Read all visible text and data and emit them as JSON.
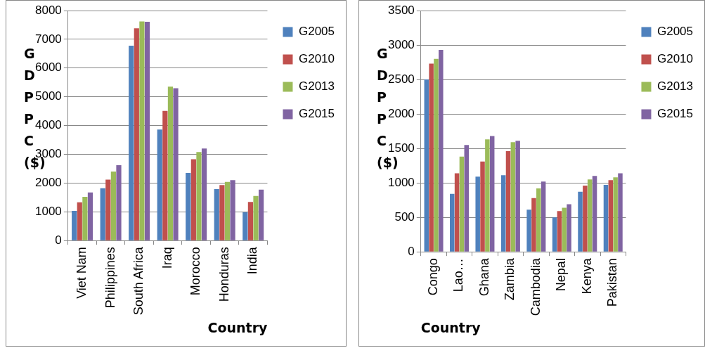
{
  "chart_data": [
    {
      "type": "bar",
      "xlabel": "Country",
      "ylabel": "GDPPC ($)",
      "categories": [
        "Viet Nam",
        "Philippines",
        "South Africa",
        "Iraq",
        "Morocco",
        "Honduras",
        "India"
      ],
      "series": [
        {
          "name": "G2005",
          "color": "#4f81bd",
          "values": [
            1030,
            1820,
            6780,
            3860,
            2350,
            1790,
            980
          ]
        },
        {
          "name": "G2010",
          "color": "#c0504d",
          "values": [
            1330,
            2120,
            7380,
            4510,
            2830,
            1930,
            1340
          ]
        },
        {
          "name": "G2013",
          "color": "#9bbb59",
          "values": [
            1520,
            2400,
            7620,
            5350,
            3080,
            2040,
            1550
          ]
        },
        {
          "name": "G2015",
          "color": "#8064a2",
          "values": [
            1670,
            2620,
            7610,
            5300,
            3200,
            2100,
            1770
          ]
        }
      ],
      "ylim": [
        0,
        8000
      ],
      "yticks": [
        0,
        1000,
        2000,
        3000,
        4000,
        5000,
        6000,
        7000,
        8000
      ],
      "grid": "y",
      "legend": "top right"
    },
    {
      "type": "bar",
      "xlabel": "Country",
      "ylabel": "GDPPC ($)",
      "categories": [
        "Congo",
        "Lao…",
        "Ghana",
        "Zambia",
        "Cambodia",
        "Nepal",
        "Kenya",
        "Pakistan"
      ],
      "series": [
        {
          "name": "G2005",
          "color": "#4f81bd",
          "values": [
            2500,
            840,
            1090,
            1110,
            610,
            500,
            870,
            970
          ]
        },
        {
          "name": "G2010",
          "color": "#c0504d",
          "values": [
            2730,
            1140,
            1310,
            1460,
            780,
            590,
            960,
            1040
          ]
        },
        {
          "name": "G2013",
          "color": "#9bbb59",
          "values": [
            2800,
            1380,
            1630,
            1590,
            920,
            640,
            1050,
            1080
          ]
        },
        {
          "name": "G2015",
          "color": "#8064a2",
          "values": [
            2930,
            1550,
            1680,
            1610,
            1020,
            690,
            1100,
            1140
          ]
        }
      ],
      "ylim": [
        0,
        3500
      ],
      "yticks": [
        0,
        500,
        1000,
        1500,
        2000,
        2500,
        3000,
        3500
      ],
      "grid": "y",
      "legend": "top right"
    }
  ]
}
